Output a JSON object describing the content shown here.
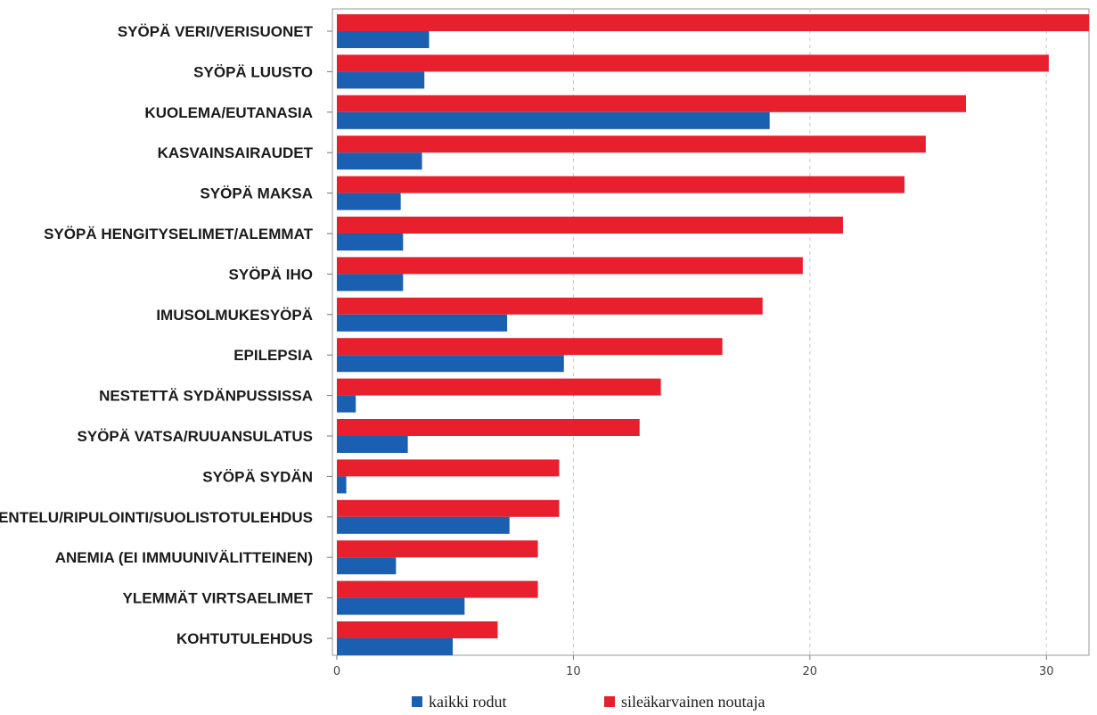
{
  "chart_data": {
    "type": "bar",
    "orientation": "horizontal",
    "categories": [
      "SYÖPÄ VERI/VERISUONET",
      "SYÖPÄ LUUSTO",
      "KUOLEMA/EUTANASIA",
      "KASVAINSAIRAUDET",
      "SYÖPÄ MAKSA",
      "SYÖPÄ HENGITYSELIMET/ALEMMAT",
      "SYÖPÄ IHO",
      "IMUSOLMUKESYÖPÄ",
      "EPILEPSIA",
      "NESTETTÄ SYDÄNPUSSISSA",
      "SYÖPÄ VATSA/RUUANSULATUS",
      "SYÖPÄ SYDÄN",
      "OKSENTELU/RIPULOINTI/SUOLISTOTULEHDUS",
      "ANEMIA (EI IMMUUNIVÄLITTEINEN)",
      "YLEMMÄT VIRTSAELIMET",
      "KOHTUTULEHDUS"
    ],
    "series": [
      {
        "name": "sileäkarvainen noutaja",
        "color": "#e8202e",
        "values": [
          31.8,
          30.1,
          26.6,
          24.9,
          24.0,
          21.4,
          19.7,
          18.0,
          16.3,
          13.7,
          12.8,
          9.4,
          9.4,
          8.5,
          8.5,
          6.8
        ]
      },
      {
        "name": "kaikki rodut",
        "color": "#1a5fb0",
        "values": [
          3.9,
          3.7,
          18.3,
          3.6,
          2.7,
          2.8,
          2.8,
          7.2,
          9.6,
          0.8,
          3.0,
          0.4,
          7.3,
          2.5,
          5.4,
          4.9
        ]
      }
    ],
    "xlim": [
      0,
      31.8
    ],
    "xticks": [
      0,
      10,
      20,
      30
    ],
    "title": "",
    "xlabel": "",
    "ylabel": "",
    "grid": "vertical dashed",
    "legend_position": "bottom"
  },
  "legend": {
    "items": [
      {
        "label": "kaikki rodut",
        "color": "#1a5fb0"
      },
      {
        "label": "sileäkarvainen noutaja",
        "color": "#e8202e"
      }
    ]
  }
}
